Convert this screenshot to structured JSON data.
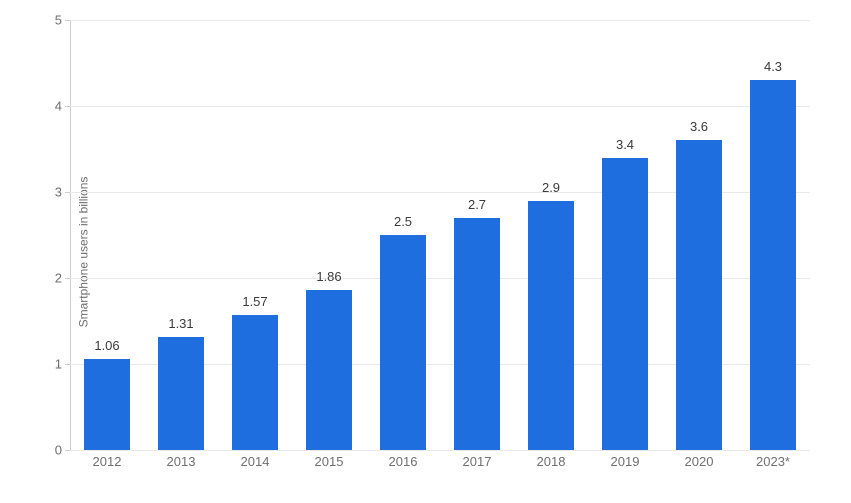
{
  "chart": {
    "type": "bar",
    "y_axis_label": "Smartphone users in billions",
    "ylim": [
      0,
      5
    ],
    "ytick_step": 1,
    "yticks": [
      0,
      1,
      2,
      3,
      4,
      5
    ],
    "categories": [
      "2012",
      "2013",
      "2014",
      "2015",
      "2016",
      "2017",
      "2018",
      "2019",
      "2020",
      "2023*"
    ],
    "values": [
      1.06,
      1.31,
      1.57,
      1.86,
      2.5,
      2.7,
      2.9,
      3.4,
      3.6,
      4.3
    ],
    "value_labels": [
      "1.06",
      "1.31",
      "1.57",
      "1.86",
      "2.5",
      "2.7",
      "2.9",
      "3.4",
      "3.6",
      "4.3"
    ],
    "bar_color": "#1e6ee0",
    "background_color": "#ffffff",
    "grid_color": "#e9e9e9",
    "axis_line_color": "#cccccc",
    "value_label_color": "#3a3a3a",
    "tick_label_color": "#6f6f6f",
    "title_fontsize": 12,
    "label_fontsize": 13,
    "bar_width": 0.62
  }
}
